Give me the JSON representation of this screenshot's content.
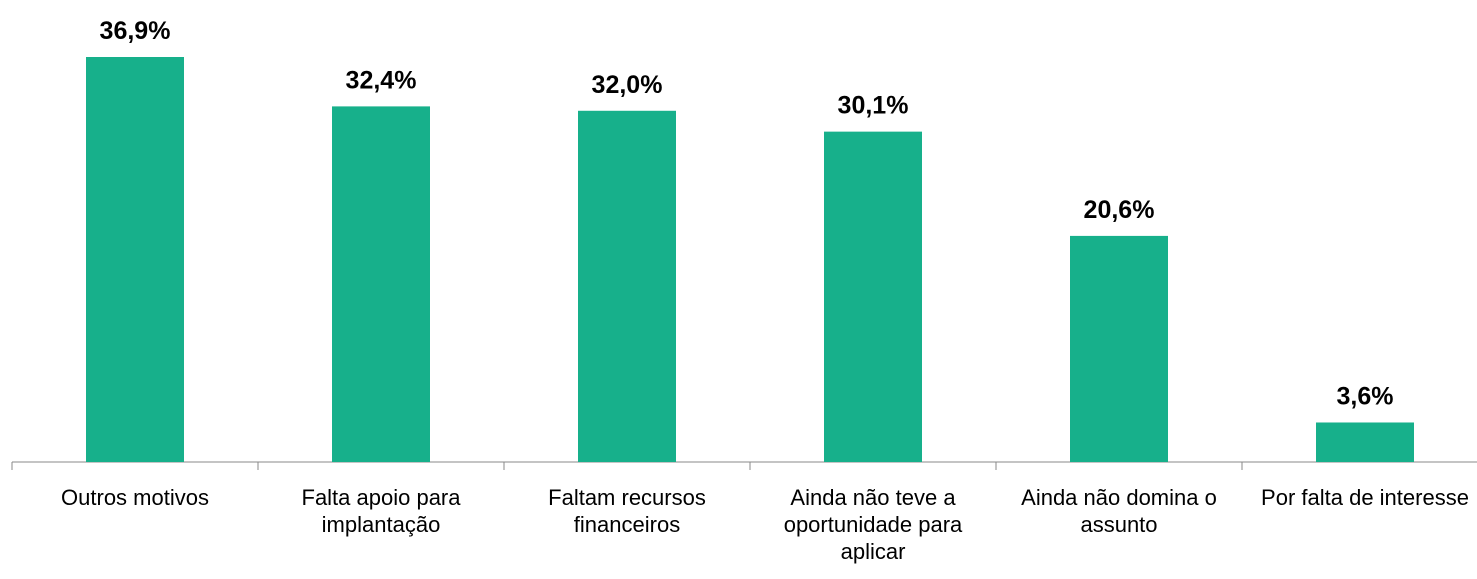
{
  "chart_data": {
    "type": "bar",
    "categories": [
      "Outros motivos",
      "Falta apoio para implantação",
      "Faltam recursos financeiros",
      "Ainda não teve a oportunidade para aplicar",
      "Ainda não domina o assunto",
      "Por falta de interesse"
    ],
    "values": [
      36.9,
      32.4,
      32.0,
      30.1,
      20.6,
      3.6
    ],
    "value_labels": [
      "36,9%",
      "32,4%",
      "32,0%",
      "30,1%",
      "20,6%",
      "3,6%"
    ],
    "color": "#17b08b"
  }
}
